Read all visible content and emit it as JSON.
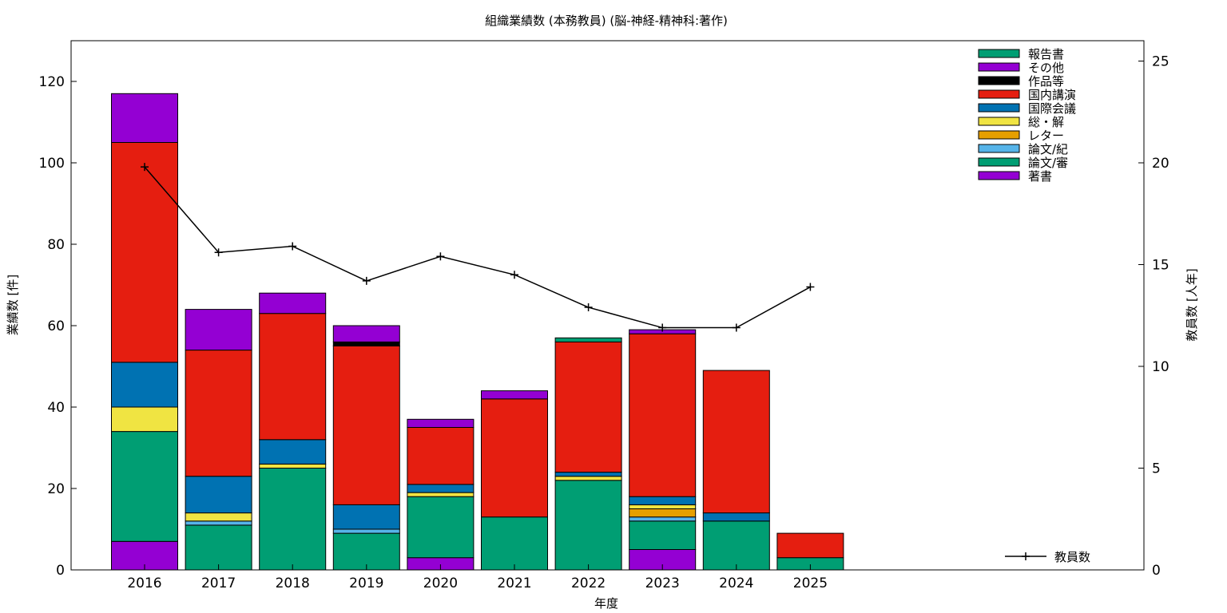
{
  "chart_data": {
    "type": "bar",
    "stacked": true,
    "title": "組織業績数 (本務教員) (脳-神経-精神科:著作)",
    "xlabel": "年度",
    "ylabel": "業績数 [件]",
    "y2label": "教員数 [人年]",
    "categories": [
      "2016",
      "2017",
      "2018",
      "2019",
      "2020",
      "2021",
      "2022",
      "2023",
      "2024",
      "2025"
    ],
    "ylim": [
      0,
      130
    ],
    "yticks": [
      0,
      20,
      40,
      60,
      80,
      100,
      120
    ],
    "y2lim": [
      0,
      26
    ],
    "y2ticks": [
      0,
      5,
      10,
      15,
      20,
      25
    ],
    "grid": false,
    "legend_position": "top-right",
    "series": [
      {
        "name": "著書",
        "color": "#9400d3",
        "values": [
          7,
          0,
          0,
          0,
          3,
          0,
          0,
          5,
          0,
          0
        ]
      },
      {
        "name": "論文/審",
        "color": "#009e73",
        "values": [
          27,
          11,
          25,
          9,
          15,
          13,
          22,
          7,
          12,
          3
        ]
      },
      {
        "name": "論文/紀",
        "color": "#56b4e9",
        "values": [
          0,
          1,
          0,
          1,
          0,
          0,
          0,
          1,
          0,
          0
        ]
      },
      {
        "name": "レター",
        "color": "#e69f00",
        "values": [
          0,
          0,
          0,
          0,
          0,
          0,
          0,
          2,
          0,
          0
        ]
      },
      {
        "name": "総・解",
        "color": "#f0e442",
        "values": [
          6,
          2,
          1,
          0,
          1,
          0,
          1,
          1,
          0,
          0
        ]
      },
      {
        "name": "国際会議",
        "color": "#0072b2",
        "values": [
          11,
          9,
          6,
          6,
          2,
          0,
          1,
          2,
          2,
          0
        ]
      },
      {
        "name": "国内講演",
        "color": "#e51e10",
        "values": [
          54,
          31,
          31,
          39,
          14,
          29,
          32,
          40,
          35,
          6
        ]
      },
      {
        "name": "作品等",
        "color": "#000000",
        "values": [
          0,
          0,
          0,
          1,
          0,
          0,
          0,
          0,
          0,
          0
        ]
      },
      {
        "name": "その他",
        "color": "#9400d3",
        "values": [
          12,
          10,
          5,
          4,
          2,
          2,
          0,
          1,
          0,
          0
        ]
      },
      {
        "name": "報告書",
        "color": "#009e73",
        "values": [
          0,
          0,
          0,
          0,
          0,
          0,
          1,
          0,
          0,
          0
        ]
      }
    ],
    "line_series": {
      "name": "教員数",
      "color": "#000000",
      "axis": "y2",
      "values": [
        19.8,
        15.6,
        15.9,
        14.2,
        15.4,
        14.5,
        12.9,
        11.9,
        11.9,
        13.9
      ]
    },
    "legend_order": [
      "報告書",
      "その他",
      "作品等",
      "国内講演",
      "国際会議",
      "総・解",
      "レター",
      "論文/紀",
      "論文/審",
      "著書"
    ]
  }
}
